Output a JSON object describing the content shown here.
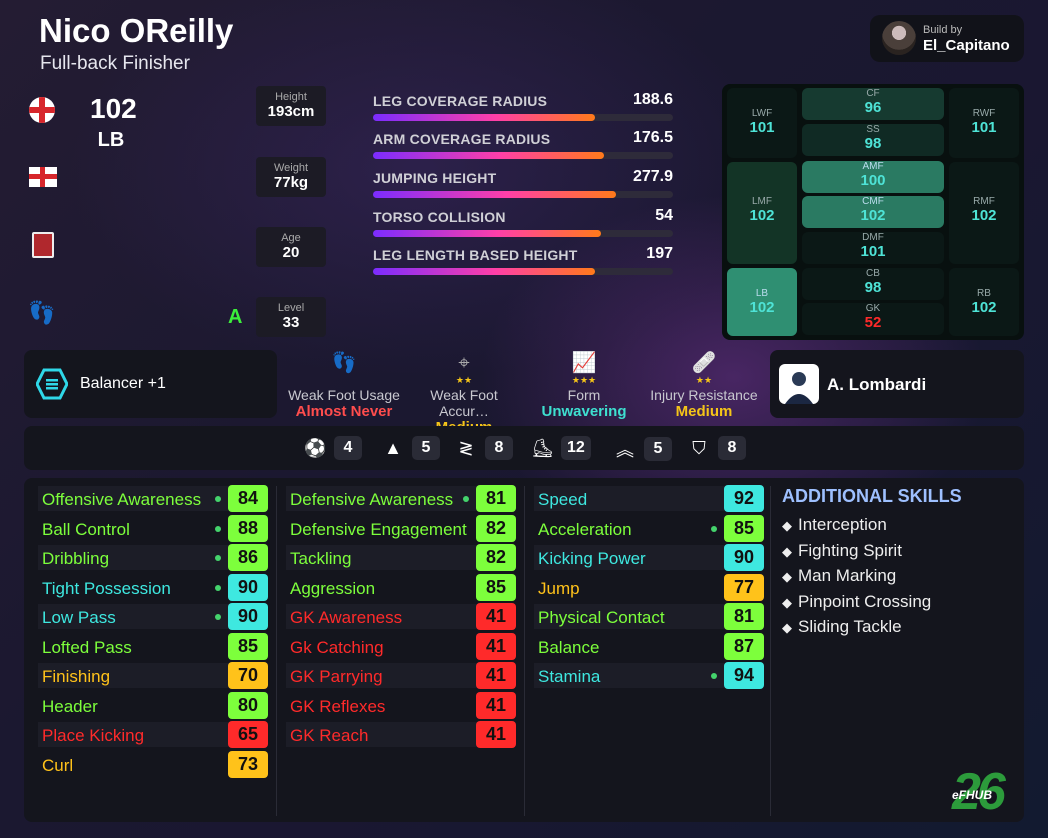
{
  "player": {
    "name": "Nico OReilly",
    "role": "Full-back Finisher",
    "rating": "102",
    "position": "LB",
    "foot_grade": "A"
  },
  "build": {
    "label": "Build by",
    "name": "El_Capitano"
  },
  "physical": {
    "height_label": "Height",
    "height": "193cm",
    "weight_label": "Weight",
    "weight": "77kg",
    "age_label": "Age",
    "age": "20",
    "level_label": "Level",
    "level": "33"
  },
  "bars": [
    {
      "label": "LEG COVERAGE RADIUS",
      "value": "188.6",
      "fill": 0.74
    },
    {
      "label": "ARM COVERAGE RADIUS",
      "value": "176.5",
      "fill": 0.77
    },
    {
      "label": "JUMPING HEIGHT",
      "value": "277.9",
      "fill": 0.81
    },
    {
      "label": "TORSO COLLISION",
      "value": "54",
      "fill": 0.76
    },
    {
      "label": "LEG LENGTH BASED HEIGHT",
      "value": "197",
      "fill": 0.74
    }
  ],
  "pitch": {
    "lwf": {
      "label": "LWF",
      "value": "101"
    },
    "cf": {
      "label": "CF",
      "value": "96"
    },
    "rwf": {
      "label": "RWF",
      "value": "101"
    },
    "ss": {
      "label": "SS",
      "value": "98"
    },
    "lmf": {
      "label": "LMF",
      "value": "102"
    },
    "amf": {
      "label": "AMF",
      "value": "100"
    },
    "rmf": {
      "label": "RMF",
      "value": "102"
    },
    "cmf": {
      "label": "CMF",
      "value": "102"
    },
    "dmf": {
      "label": "DMF",
      "value": "101"
    },
    "lb": {
      "label": "LB",
      "value": "102"
    },
    "cb": {
      "label": "CB",
      "value": "98"
    },
    "rb": {
      "label": "RB",
      "value": "102"
    },
    "gk": {
      "label": "GK",
      "value": "52"
    }
  },
  "playstyle": {
    "label": "Balancer +1"
  },
  "extras": [
    {
      "label": "Weak Foot Usage",
      "value": "Almost Never",
      "stars": "",
      "color": "#ff4d4d",
      "icon": "foot-icon"
    },
    {
      "label": "Weak Foot Accur…",
      "value": "Medium",
      "stars": "★★",
      "color": "#f5c518",
      "icon": "crosshair-icon"
    },
    {
      "label": "Form",
      "value": "Unwavering",
      "stars": "★★★",
      "color": "#3ee0d0",
      "icon": "form-chart-icon"
    },
    {
      "label": "Injury Resistance",
      "value": "Medium",
      "stars": "★★",
      "color": "#f5c518",
      "icon": "bandage-icon"
    }
  ],
  "coach": {
    "name": "A. Lombardi"
  },
  "counts": [
    {
      "icon": "ball-icon",
      "glyph": "⚽",
      "value": "4"
    },
    {
      "icon": "cone-icon",
      "glyph": "▲",
      "value": "5"
    },
    {
      "icon": "dribble-icon",
      "glyph": "≷",
      "value": "8"
    },
    {
      "icon": "boot-icon",
      "glyph": "⚊",
      "value": "12"
    },
    {
      "icon": "double-chevron-icon",
      "glyph": "︽",
      "value": "5"
    },
    {
      "icon": "shield-icon",
      "glyph": "◖",
      "value": "8"
    }
  ],
  "skills": {
    "col1": [
      {
        "name": "Offensive Awareness",
        "value": "84",
        "dot": true,
        "nc": "#7dff3c",
        "vc": "#7dff3c"
      },
      {
        "name": "Ball Control",
        "value": "88",
        "dot": true,
        "nc": "#7dff3c",
        "vc": "#7dff3c"
      },
      {
        "name": "Dribbling",
        "value": "86",
        "dot": true,
        "nc": "#7dff3c",
        "vc": "#7dff3c"
      },
      {
        "name": "Tight Possession",
        "value": "90",
        "dot": true,
        "nc": "#3ee8e0",
        "vc": "#3ee8e0"
      },
      {
        "name": "Low Pass",
        "value": "90",
        "dot": true,
        "nc": "#3ee8e0",
        "vc": "#3ee8e0"
      },
      {
        "name": "Lofted Pass",
        "value": "85",
        "dot": false,
        "nc": "#7dff3c",
        "vc": "#7dff3c"
      },
      {
        "name": "Finishing",
        "value": "70",
        "dot": false,
        "nc": "#ffc21a",
        "vc": "#ffc21a"
      },
      {
        "name": "Header",
        "value": "80",
        "dot": false,
        "nc": "#7dff3c",
        "vc": "#7dff3c"
      },
      {
        "name": "Place Kicking",
        "value": "65",
        "dot": false,
        "nc": "#ff2a2a",
        "vc": "#ff2a2a"
      },
      {
        "name": "Curl",
        "value": "73",
        "dot": false,
        "nc": "#ffc21a",
        "vc": "#ffc21a"
      }
    ],
    "col2": [
      {
        "name": "Defensive Awareness",
        "value": "81",
        "dot": true,
        "nc": "#7dff3c",
        "vc": "#7dff3c"
      },
      {
        "name": "Defensive Engagement",
        "value": "82",
        "dot": false,
        "nc": "#7dff3c",
        "vc": "#7dff3c"
      },
      {
        "name": "Tackling",
        "value": "82",
        "dot": false,
        "nc": "#7dff3c",
        "vc": "#7dff3c"
      },
      {
        "name": "Aggression",
        "value": "85",
        "dot": false,
        "nc": "#7dff3c",
        "vc": "#7dff3c"
      },
      {
        "name": "GK Awareness",
        "value": "41",
        "dot": false,
        "nc": "#ff2a2a",
        "vc": "#ff2a2a"
      },
      {
        "name": "Gk Catching",
        "value": "41",
        "dot": false,
        "nc": "#ff2a2a",
        "vc": "#ff2a2a"
      },
      {
        "name": "GK Parrying",
        "value": "41",
        "dot": false,
        "nc": "#ff2a2a",
        "vc": "#ff2a2a"
      },
      {
        "name": "GK Reflexes",
        "value": "41",
        "dot": false,
        "nc": "#ff2a2a",
        "vc": "#ff2a2a"
      },
      {
        "name": "GK Reach",
        "value": "41",
        "dot": false,
        "nc": "#ff2a2a",
        "vc": "#ff2a2a"
      }
    ],
    "col3": [
      {
        "name": "Speed",
        "value": "92",
        "dot": false,
        "nc": "#3ee8e0",
        "vc": "#3ee8e0"
      },
      {
        "name": "Acceleration",
        "value": "85",
        "dot": true,
        "nc": "#7dff3c",
        "vc": "#7dff3c"
      },
      {
        "name": "Kicking Power",
        "value": "90",
        "dot": false,
        "nc": "#3ee8e0",
        "vc": "#3ee8e0"
      },
      {
        "name": "Jump",
        "value": "77",
        "dot": false,
        "nc": "#ffc21a",
        "vc": "#ffc21a"
      },
      {
        "name": "Physical Contact",
        "value": "81",
        "dot": false,
        "nc": "#7dff3c",
        "vc": "#7dff3c"
      },
      {
        "name": "Balance",
        "value": "87",
        "dot": false,
        "nc": "#7dff3c",
        "vc": "#7dff3c"
      },
      {
        "name": "Stamina",
        "value": "94",
        "dot": true,
        "nc": "#3ee8e0",
        "vc": "#3ee8e0"
      }
    ]
  },
  "additional": {
    "title": "ADDITIONAL SKILLS",
    "items": [
      "Interception",
      "Fighting Spirit",
      "Man Marking",
      "Pinpoint Crossing",
      "Sliding Tackle"
    ]
  },
  "logo": {
    "number": "26",
    "brand": "eFHUB"
  }
}
